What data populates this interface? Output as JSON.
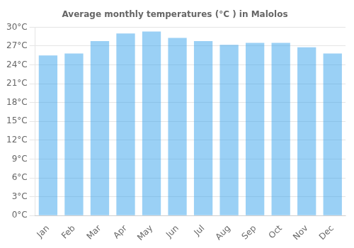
{
  "chart_data": {
    "type": "bar",
    "title": "Average monthly temperatures (°C ) in Malolos",
    "categories": [
      "Jan",
      "Feb",
      "Mar",
      "Apr",
      "May",
      "Jun",
      "Jul",
      "Aug",
      "Sep",
      "Oct",
      "Nov",
      "Dec"
    ],
    "values": [
      25.5,
      25.8,
      27.8,
      29.0,
      29.3,
      28.3,
      27.8,
      27.2,
      27.5,
      27.5,
      26.8,
      25.8
    ],
    "ylim": [
      0,
      30
    ],
    "yticks": [
      {
        "value": 0,
        "label": "0°C"
      },
      {
        "value": 3,
        "label": "3°C"
      },
      {
        "value": 6,
        "label": "6°C"
      },
      {
        "value": 9,
        "label": "9°C"
      },
      {
        "value": 12,
        "label": "12°C"
      },
      {
        "value": 15,
        "label": "15°C"
      },
      {
        "value": 18,
        "label": "18°C"
      },
      {
        "value": 21,
        "label": "21°C"
      },
      {
        "value": 24,
        "label": "24°C"
      },
      {
        "value": 27,
        "label": "27°C"
      },
      {
        "value": 30,
        "label": "30°C"
      }
    ],
    "grid": true
  }
}
